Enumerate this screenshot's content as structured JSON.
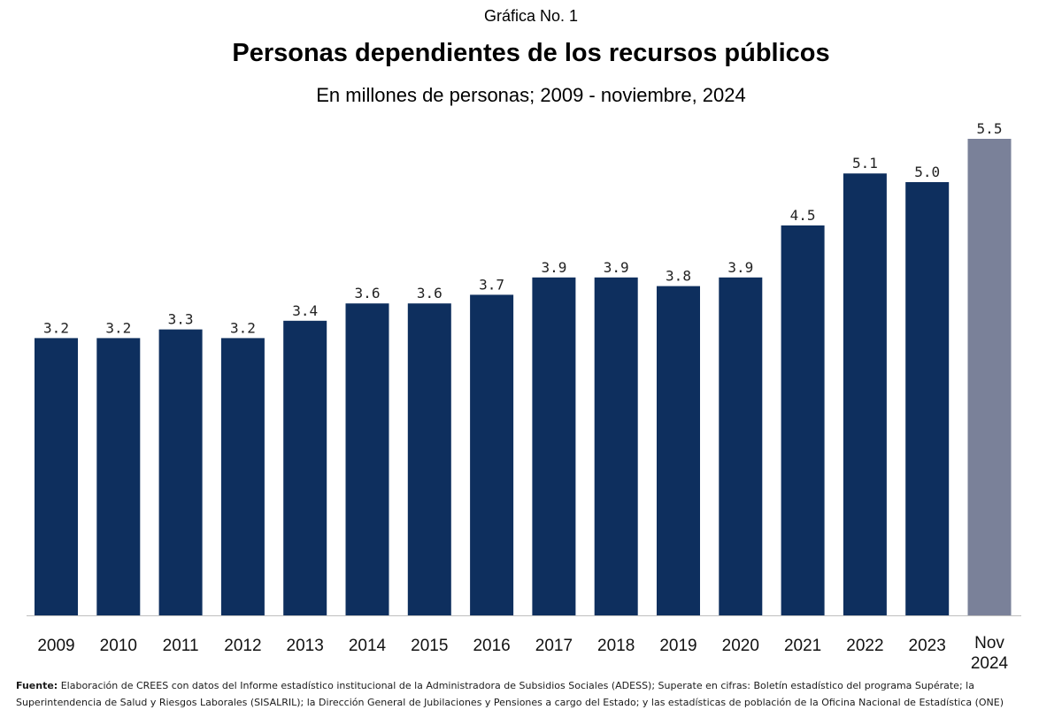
{
  "header": {
    "kicker": "Gráfica No. 1",
    "title": "Personas  dependientes de los recursos públicos",
    "subtitle": "En millones de personas; 2009 - noviembre, 2024"
  },
  "chart_data": {
    "type": "bar",
    "categories": [
      "2009",
      "2010",
      "2011",
      "2012",
      "2013",
      "2014",
      "2015",
      "2016",
      "2017",
      "2018",
      "2019",
      "2020",
      "2021",
      "2022",
      "2023",
      "Nov 2024"
    ],
    "values": [
      3.2,
      3.2,
      3.3,
      3.2,
      3.4,
      3.6,
      3.6,
      3.7,
      3.9,
      3.9,
      3.8,
      3.9,
      4.5,
      5.1,
      5.0,
      5.5
    ],
    "value_labels": [
      "3.2",
      "3.2",
      "3.3",
      "3.2",
      "3.4",
      "3.6",
      "3.6",
      "3.7",
      "3.9",
      "3.9",
      "3.8",
      "3.9",
      "4.5",
      "5.1",
      "5.0",
      "5.5"
    ],
    "ylim": [
      0,
      5.5
    ],
    "grid": false,
    "colors": {
      "bar": "#0e2f5e",
      "highlight": "#7a8199",
      "axis": "#bfbfbf"
    },
    "highlight_index": 15
  },
  "footer": {
    "source_label": "Fuente:",
    "source_text": " Elaboración de CREES con datos del Informe estadístico institucional de la Administradora de Subsidios Sociales (ADESS);  Superate en cifras: Boletín estadístico del programa Supérate; la Superintendencia de Salud y Riesgos Laborales (SISALRIL); la Dirección General de Jubilaciones y Pensiones a cargo del Estado; y  las estadísticas de población de la Oficina Nacional de Estadística (ONE)"
  }
}
